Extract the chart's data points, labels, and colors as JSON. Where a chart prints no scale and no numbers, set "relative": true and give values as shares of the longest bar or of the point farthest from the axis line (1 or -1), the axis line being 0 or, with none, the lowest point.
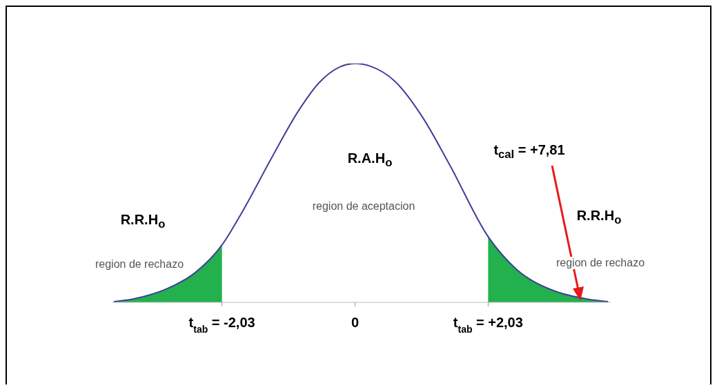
{
  "chart_data": {
    "type": "line",
    "relative": true,
    "x": [
      -3.68,
      -3.39,
      -2.86,
      -2.44,
      -2.03,
      -1.71,
      -1.28,
      -0.86,
      -0.55,
      -0.23,
      0,
      0.24,
      0.61,
      1.03,
      1.45,
      2.03,
      2.46,
      3.0,
      3.54,
      3.86
    ],
    "xlim": [
      -3.7,
      3.9
    ],
    "xticks": [
      {
        "value": -2.03,
        "label": "t$_{tab}$ = -2,03"
      },
      {
        "value": 0,
        "label": "0"
      },
      {
        "value": 2.03,
        "label": "t$_{tab}$ = +2,03"
      }
    ],
    "series": [
      {
        "type": "area",
        "color": "#22b14c",
        "values": [
          0.003,
          0.014,
          0.058,
          0.124,
          0.24,
          null,
          null,
          null,
          null,
          null,
          null,
          null,
          null,
          null,
          null,
          0.275,
          0.139,
          0.052,
          0.014,
          0.003
        ]
      },
      {
        "color": "#3f3f9a",
        "values": [
          0.003,
          0.014,
          0.058,
          0.124,
          0.24,
          0.384,
          0.601,
          0.803,
          0.919,
          0.986,
          1,
          0.988,
          0.925,
          0.775,
          0.572,
          0.275,
          0.139,
          0.052,
          0.014,
          0.003
        ]
      }
    ],
    "annotations": [
      "R.A.H$_{o}$",
      "region de aceptacion",
      "R.R.H$_{o}$",
      "region de rechazo",
      "R.R.H$_{o}$",
      "region de rechazo",
      "t$_{cal}$ = +7,81"
    ]
  }
}
